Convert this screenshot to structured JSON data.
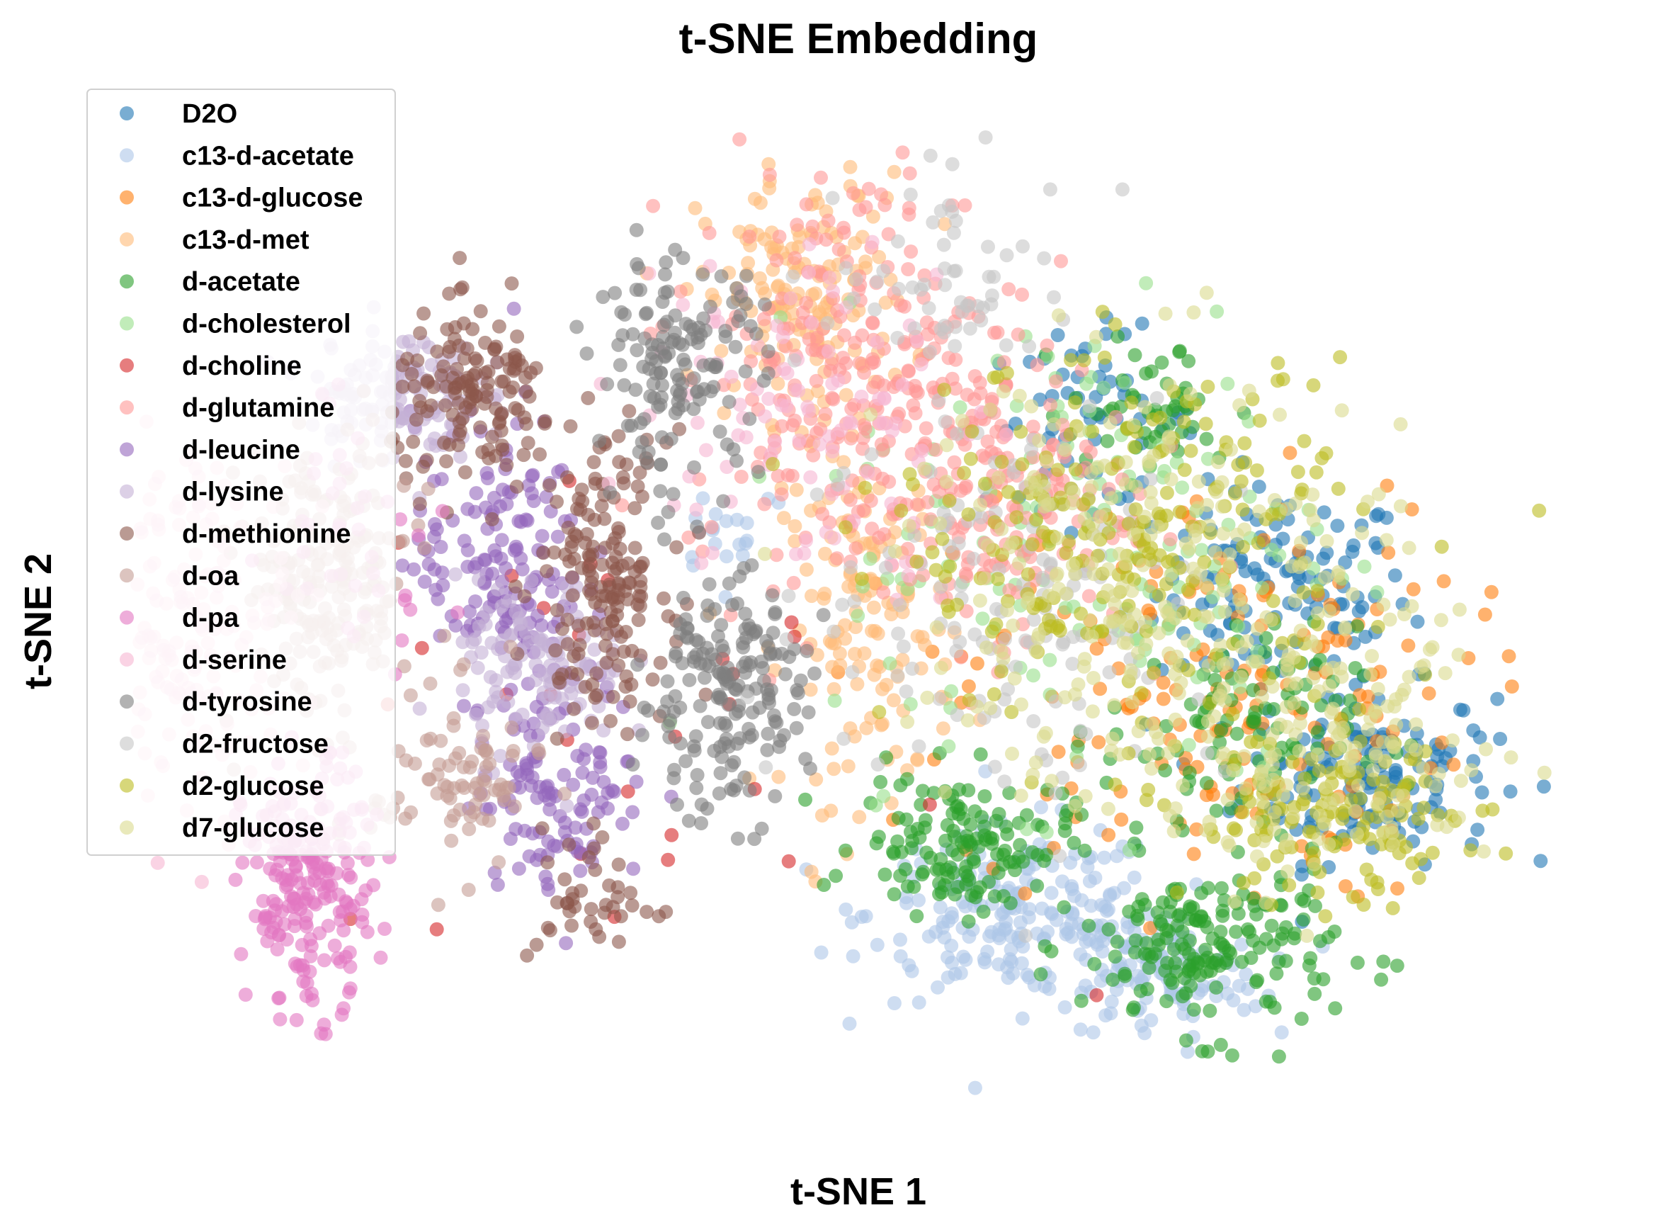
{
  "chart_data": {
    "type": "scatter",
    "title": "t-SNE Embedding",
    "xlabel": "t-SNE 1",
    "ylabel": "t-SNE 2",
    "axes_visible": false,
    "grid": false,
    "marker_alpha": 0.6,
    "xlim": [
      -70,
      70
    ],
    "ylim": [
      -60,
      60
    ],
    "legend_position": "upper-left",
    "series": [
      {
        "name": "D2O",
        "color": "#1f77b4",
        "clusters": [
          {
            "cx": 40,
            "cy": 4,
            "sx": 6,
            "sy": 6,
            "n": 120
          },
          {
            "cx": 48,
            "cy": -17,
            "sx": 6,
            "sy": 5,
            "n": 150
          },
          {
            "cx": 22,
            "cy": 24,
            "sx": 5,
            "sy": 5,
            "n": 60
          }
        ]
      },
      {
        "name": "c13-d-acetate",
        "color": "#aec7e8",
        "clusters": [
          {
            "cx": 15,
            "cy": -33,
            "sx": 7,
            "sy": 5,
            "n": 200
          },
          {
            "cx": 28,
            "cy": -40,
            "sx": 5,
            "sy": 4,
            "n": 120
          },
          {
            "cx": -12,
            "cy": 12,
            "sx": 3,
            "sy": 3,
            "n": 20
          }
        ]
      },
      {
        "name": "c13-d-glucose",
        "color": "#ff7f0e",
        "clusters": [
          {
            "cx": 33,
            "cy": -8,
            "sx": 12,
            "sy": 12,
            "n": 180
          }
        ]
      },
      {
        "name": "c13-d-met",
        "color": "#ffbb78",
        "clusters": [
          {
            "cx": -5,
            "cy": 38,
            "sx": 5,
            "sy": 7,
            "n": 160
          },
          {
            "cx": 1,
            "cy": 0,
            "sx": 4,
            "sy": 10,
            "n": 140
          }
        ]
      },
      {
        "name": "d-acetate",
        "color": "#2ca02c",
        "clusters": [
          {
            "cx": 33,
            "cy": -37,
            "sx": 6,
            "sy": 5,
            "n": 180
          },
          {
            "cx": 10,
            "cy": -25,
            "sx": 5,
            "sy": 4,
            "n": 140
          },
          {
            "cx": 35,
            "cy": -12,
            "sx": 6,
            "sy": 6,
            "n": 100
          },
          {
            "cx": 28,
            "cy": 25,
            "sx": 4,
            "sy": 4,
            "n": 50
          }
        ]
      },
      {
        "name": "d-cholesterol",
        "color": "#98df8a",
        "clusters": [
          {
            "cx": 22,
            "cy": 10,
            "sx": 12,
            "sy": 14,
            "n": 160
          }
        ]
      },
      {
        "name": "d-choline",
        "color": "#d62728",
        "clusters": [
          {
            "cx": -20,
            "cy": -10,
            "sx": 15,
            "sy": 15,
            "n": 30
          }
        ]
      },
      {
        "name": "d-glutamine",
        "color": "#ff9896",
        "clusters": [
          {
            "cx": 0,
            "cy": 30,
            "sx": 8,
            "sy": 12,
            "n": 250
          },
          {
            "cx": 12,
            "cy": 15,
            "sx": 7,
            "sy": 8,
            "n": 180
          }
        ]
      },
      {
        "name": "d-leucine",
        "color": "#9467bd",
        "clusters": [
          {
            "cx": -34,
            "cy": 8,
            "sx": 4,
            "sy": 8,
            "n": 150
          },
          {
            "cx": -28,
            "cy": -18,
            "sx": 4,
            "sy": 6,
            "n": 120
          }
        ]
      },
      {
        "name": "d-lysine",
        "color": "#c5b0d5",
        "clusters": [
          {
            "cx": -44,
            "cy": 27,
            "sx": 4,
            "sy": 4,
            "n": 140
          },
          {
            "cx": -30,
            "cy": -5,
            "sx": 4,
            "sy": 5,
            "n": 120
          }
        ]
      },
      {
        "name": "d-methionine",
        "color": "#8c564b",
        "clusters": [
          {
            "cx": -36,
            "cy": 26,
            "sx": 4,
            "sy": 5,
            "n": 140
          },
          {
            "cx": -24,
            "cy": 6,
            "sx": 3,
            "sy": 8,
            "n": 170
          },
          {
            "cx": -25,
            "cy": -31,
            "sx": 3,
            "sy": 4,
            "n": 40
          }
        ]
      },
      {
        "name": "d-oa",
        "color": "#c49c94",
        "clusters": [
          {
            "cx": -50,
            "cy": 5,
            "sx": 4,
            "sy": 8,
            "n": 220
          },
          {
            "cx": -38,
            "cy": -18,
            "sx": 4,
            "sy": 5,
            "n": 80
          }
        ]
      },
      {
        "name": "d-pa",
        "color": "#e377c2",
        "clusters": [
          {
            "cx": -52,
            "cy": -30,
            "sx": 3,
            "sy": 7,
            "n": 220
          },
          {
            "cx": -47,
            "cy": 13,
            "sx": 4,
            "sy": 8,
            "n": 40
          }
        ]
      },
      {
        "name": "d-serine",
        "color": "#f7b6d2",
        "clusters": [
          {
            "cx": -63,
            "cy": 0,
            "sx": 5,
            "sy": 10,
            "n": 200
          },
          {
            "cx": -5,
            "cy": 25,
            "sx": 8,
            "sy": 10,
            "n": 100
          }
        ]
      },
      {
        "name": "d-tyrosine",
        "color": "#7f7f7f",
        "clusters": [
          {
            "cx": -13,
            "cy": -8,
            "sx": 4,
            "sy": 7,
            "n": 180
          },
          {
            "cx": -17,
            "cy": 30,
            "sx": 4,
            "sy": 6,
            "n": 140
          }
        ]
      },
      {
        "name": "d2-fructose",
        "color": "#c7c7c7",
        "clusters": [
          {
            "cx": 15,
            "cy": 5,
            "sx": 10,
            "sy": 12,
            "n": 150
          },
          {
            "cx": 10,
            "cy": 40,
            "sx": 6,
            "sy": 6,
            "n": 60
          }
        ]
      },
      {
        "name": "d2-glucose",
        "color": "#bcbd22",
        "clusters": [
          {
            "cx": 25,
            "cy": 10,
            "sx": 11,
            "sy": 10,
            "n": 230
          },
          {
            "cx": 45,
            "cy": -22,
            "sx": 7,
            "sy": 5,
            "n": 140
          }
        ]
      },
      {
        "name": "d7-glucose",
        "color": "#dbdb8d",
        "clusters": [
          {
            "cx": 28,
            "cy": 5,
            "sx": 12,
            "sy": 13,
            "n": 260
          },
          {
            "cx": 45,
            "cy": -15,
            "sx": 8,
            "sy": 7,
            "n": 140
          }
        ]
      }
    ]
  }
}
